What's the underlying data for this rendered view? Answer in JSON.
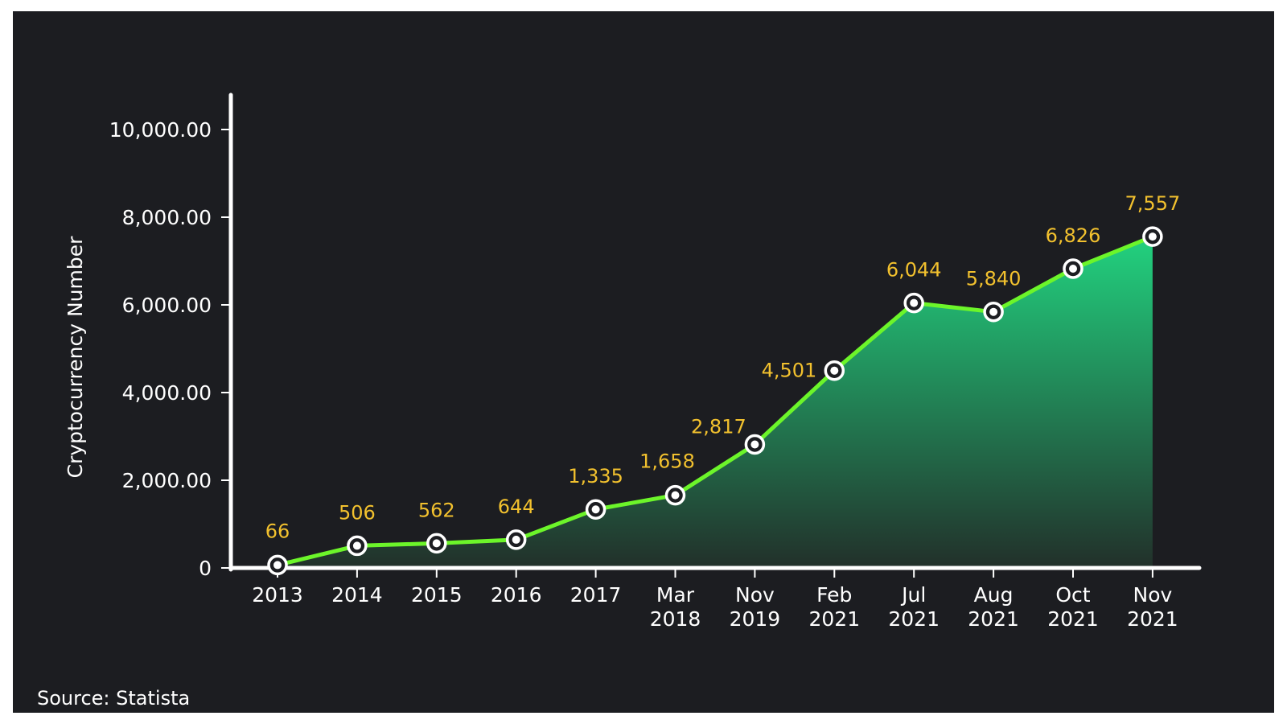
{
  "source": "Source: Statista",
  "colors": {
    "background": "#1c1d21",
    "line": "#6cf52a",
    "area_top": "#22d27f",
    "area_bottom": "#22302a",
    "label": "#f2c12e",
    "axis": "#ffffff"
  },
  "chart_data": {
    "type": "area",
    "ylabel": "Cryptocurrency Number",
    "xlabel": "",
    "ylim": [
      0,
      10800
    ],
    "yticks": [
      {
        "value": 0,
        "label": "0"
      },
      {
        "value": 2000,
        "label": "2,000.00"
      },
      {
        "value": 4000,
        "label": "4,000.00"
      },
      {
        "value": 6000,
        "label": "6,000.00"
      },
      {
        "value": 8000,
        "label": "8,000.00"
      },
      {
        "value": 10000,
        "label": "10,000.00"
      }
    ],
    "categories": [
      [
        "2013"
      ],
      [
        "2014"
      ],
      [
        "2015"
      ],
      [
        "2016"
      ],
      [
        "2017"
      ],
      [
        "Mar",
        "2018"
      ],
      [
        "Nov",
        "2019"
      ],
      [
        "Feb",
        "2021"
      ],
      [
        "Jul",
        "2021"
      ],
      [
        "Aug",
        "2021"
      ],
      [
        "Oct",
        "2021"
      ],
      [
        "Nov",
        "2021"
      ]
    ],
    "values": [
      66,
      506,
      562,
      644,
      1335,
      1658,
      2817,
      4501,
      6044,
      5840,
      6826,
      7557
    ],
    "labels": [
      "66",
      "506",
      "562",
      "644",
      "1,335",
      "1,658",
      "2,817",
      "4,501",
      "6,044",
      "5,840",
      "6,826",
      "7,557"
    ],
    "grid": false,
    "legend": "none"
  }
}
